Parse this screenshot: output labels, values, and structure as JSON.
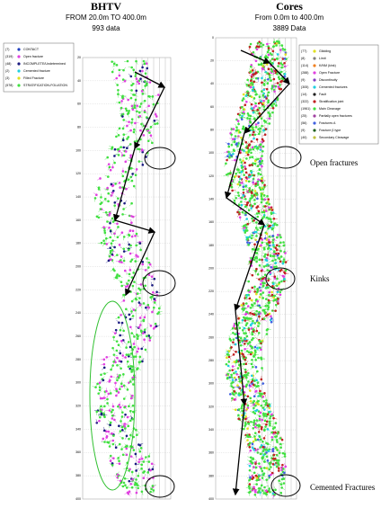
{
  "panels": [
    {
      "title": "BHTV",
      "range_text": "FROM 20.0m TO 400.0m",
      "count_text": "993 data",
      "depth_range": [
        20,
        400
      ],
      "depth_ticks": [
        20,
        40,
        60,
        80,
        100,
        120,
        140,
        160,
        180,
        200,
        220,
        240,
        260,
        280,
        300,
        320,
        340,
        360,
        380,
        400
      ],
      "legend": [
        {
          "count": "(7)",
          "label": "CONTACT",
          "color": "#1f3fbf"
        },
        {
          "count": "(319)",
          "label": "Open fracture",
          "color": "#e040e0"
        },
        {
          "count": "(48)",
          "label": "INCOMPLETE/Undetermined",
          "color": "#1a1a80"
        },
        {
          "count": "(2)",
          "label": "Cemented fracture",
          "color": "#20d0e0"
        },
        {
          "count": "(3)",
          "label": "Filled Fracture",
          "color": "#e0e020"
        },
        {
          "count": "(578)",
          "label": "STRATIFICATION-FOLIATION",
          "color": "#40e040"
        }
      ]
    },
    {
      "title": "Cores",
      "range_text": "From 0.0m to 400.0m",
      "count_text": "3889 Data",
      "depth_range": [
        0,
        400
      ],
      "depth_ticks": [
        0,
        20,
        40,
        60,
        80,
        100,
        120,
        140,
        160,
        180,
        200,
        220,
        240,
        260,
        280,
        300,
        320,
        340,
        360,
        380,
        400
      ],
      "legend": [
        {
          "count": "(77)",
          "label": "Glidding",
          "color": "#e0e020"
        },
        {
          "count": "(8)",
          "label": "Limit",
          "color": "#808080"
        },
        {
          "count": "(114)",
          "label": "K/NM (kink)",
          "color": "#f08020"
        },
        {
          "count": "(288)",
          "label": "Open Fracture",
          "color": "#e040e0"
        },
        {
          "count": "(9)",
          "label": "Discontinuity",
          "color": "#8040c0"
        },
        {
          "count": "(305)",
          "label": "Cemented fractures",
          "color": "#20d0e0"
        },
        {
          "count": "(14)",
          "label": "Fault",
          "color": "#202020"
        },
        {
          "count": "(322)",
          "label": "Stratification joint",
          "color": "#c02020"
        },
        {
          "count": "(1961)",
          "label": "Main Cleavage",
          "color": "#40e040"
        },
        {
          "count": "(25)",
          "label": "Partially open fractures",
          "color": "#a040a0"
        },
        {
          "count": "(56)",
          "label": "Fractures A",
          "color": "#4060e0"
        },
        {
          "count": "(9)",
          "label": "Fracture β type",
          "color": "#206020"
        },
        {
          "count": "(40)",
          "label": "Secondary Cleavage",
          "color": "#c0c040"
        }
      ]
    }
  ],
  "annotations": [
    "Open fractures",
    "Kinks",
    "Cemented Fractures"
  ]
}
